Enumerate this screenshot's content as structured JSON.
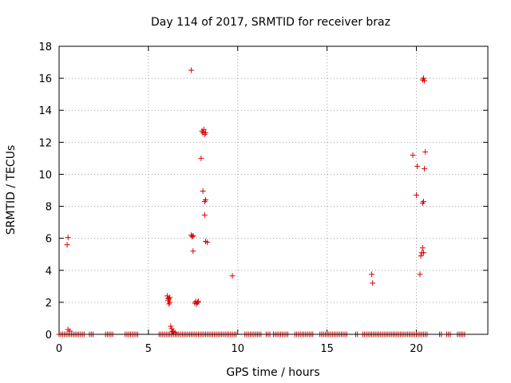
{
  "chart_data": {
    "type": "scatter",
    "title": "Day 114 of 2017, SRMTID for receiver braz",
    "xlabel": "GPS time / hours",
    "ylabel": "SRMTID / TECUs",
    "xlim": [
      0,
      24
    ],
    "ylim": [
      0,
      18
    ],
    "xticks": [
      0,
      5,
      10,
      15,
      20
    ],
    "yticks": [
      0,
      2,
      4,
      6,
      8,
      10,
      12,
      14,
      16,
      18
    ],
    "grid": true,
    "marker": "+",
    "colors": {
      "series": "#dd0000",
      "grid": "#a0a0a0",
      "axis": "#000000"
    },
    "series": [
      {
        "name": "SRMTID",
        "points": [
          [
            0.5,
            6.05
          ],
          [
            0.45,
            5.6
          ],
          [
            0.5,
            0.3
          ],
          [
            0.6,
            0.2
          ],
          [
            6.05,
            2.4
          ],
          [
            6.1,
            2.25
          ],
          [
            6.1,
            2.1
          ],
          [
            6.15,
            2.2
          ],
          [
            6.15,
            1.9
          ],
          [
            6.2,
            2.0
          ],
          [
            6.2,
            2.3
          ],
          [
            6.25,
            0.5
          ],
          [
            6.3,
            0.35
          ],
          [
            6.35,
            0.2
          ],
          [
            6.4,
            0.15
          ],
          [
            6.5,
            0.1
          ],
          [
            7.4,
            16.5
          ],
          [
            7.4,
            6.2
          ],
          [
            7.45,
            6.1
          ],
          [
            7.5,
            6.15
          ],
          [
            7.5,
            5.2
          ],
          [
            7.6,
            1.95
          ],
          [
            7.65,
            2.05
          ],
          [
            7.7,
            1.9
          ],
          [
            7.75,
            2.0
          ],
          [
            7.8,
            2.05
          ],
          [
            7.95,
            11.0
          ],
          [
            8.0,
            12.7
          ],
          [
            8.05,
            12.6
          ],
          [
            8.1,
            12.8
          ],
          [
            8.15,
            12.5
          ],
          [
            8.2,
            12.6
          ],
          [
            8.05,
            8.95
          ],
          [
            8.15,
            8.3
          ],
          [
            8.2,
            8.4
          ],
          [
            8.15,
            7.45
          ],
          [
            8.2,
            5.8
          ],
          [
            8.3,
            5.75
          ],
          [
            9.7,
            3.65
          ],
          [
            17.5,
            3.75
          ],
          [
            17.55,
            3.2
          ],
          [
            19.8,
            11.2
          ],
          [
            20.05,
            10.5
          ],
          [
            20.0,
            8.7
          ],
          [
            20.2,
            3.75
          ],
          [
            20.25,
            4.9
          ],
          [
            20.3,
            5.1
          ],
          [
            20.35,
            5.4
          ],
          [
            20.4,
            5.1
          ],
          [
            20.35,
            8.2
          ],
          [
            20.4,
            8.3
          ],
          [
            20.45,
            10.35
          ],
          [
            20.5,
            11.4
          ],
          [
            20.35,
            15.9
          ],
          [
            20.4,
            16.0
          ],
          [
            20.45,
            15.85
          ]
        ],
        "zero_value_intervals": [
          [
            0.0,
            1.4
          ],
          [
            1.7,
            1.9
          ],
          [
            2.6,
            3.0
          ],
          [
            3.7,
            4.4
          ],
          [
            5.6,
            9.9
          ],
          [
            10.4,
            11.3
          ],
          [
            11.6,
            11.8
          ],
          [
            12.0,
            12.8
          ],
          [
            13.2,
            14.2
          ],
          [
            14.6,
            16.1
          ],
          [
            16.6,
            16.7
          ],
          [
            17.0,
            20.6
          ],
          [
            21.3,
            21.4
          ],
          [
            21.7,
            21.9
          ],
          [
            22.3,
            22.7
          ]
        ],
        "zero_value_step": 0.1
      }
    ]
  }
}
